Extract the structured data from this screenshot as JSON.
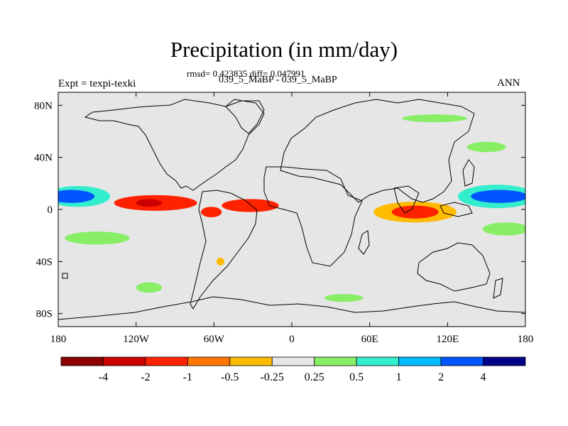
{
  "chart_data": {
    "type": "heatmap",
    "title": "Precipitation (in mm/day)",
    "stats": "rmsd= 0.423835 diff= 0.047991",
    "experiments": "039_5_MaBP - 039_5_MaBP",
    "expt_label": "Expt = texpi-texki",
    "period": "ANN",
    "xlim": [
      -180,
      180
    ],
    "ylim": [
      -90,
      90
    ],
    "x_ticks": [
      {
        "value": -180,
        "label": "180"
      },
      {
        "value": -120,
        "label": "120W"
      },
      {
        "value": -60,
        "label": "60W"
      },
      {
        "value": 0,
        "label": "0"
      },
      {
        "value": 60,
        "label": "60E"
      },
      {
        "value": 120,
        "label": "120E"
      },
      {
        "value": 180,
        "label": "180"
      }
    ],
    "y_ticks": [
      {
        "value": 80,
        "label": "80N"
      },
      {
        "value": 40,
        "label": "40N"
      },
      {
        "value": 0,
        "label": "0"
      },
      {
        "value": -40,
        "label": "40S"
      },
      {
        "value": -80,
        "label": "80S"
      }
    ],
    "colorbar": {
      "levels": [
        "-4",
        "-2",
        "-1",
        "-0.5",
        "-0.25",
        "0.25",
        "0.5",
        "1",
        "2",
        "4"
      ],
      "colors": [
        "#8b0000",
        "#cc0000",
        "#ff2200",
        "#ff7700",
        "#ffbb00",
        "#e6e6e6",
        "#88ee66",
        "#33eecc",
        "#00bbff",
        "#0055ff",
        "#000088"
      ]
    },
    "regions": [
      {
        "name": "tropical-pacific-east-dry",
        "lon": -105,
        "lat": 5,
        "rlon": 32,
        "rlat": 6,
        "level": -2
      },
      {
        "name": "tropical-pacific-east-core",
        "lon": -110,
        "lat": 5,
        "rlon": 10,
        "rlat": 3,
        "level": -4
      },
      {
        "name": "tropical-pacific-east-halo",
        "lon": -100,
        "lat": 8,
        "rlon": 45,
        "rlat": 10,
        "level": -0.25
      },
      {
        "name": "tropical-atlantic-dry",
        "lon": -32,
        "lat": 3,
        "rlon": 22,
        "rlat": 5,
        "level": -2
      },
      {
        "name": "tropical-atlantic-halo",
        "lon": -25,
        "lat": 8,
        "rlon": 30,
        "rlat": 9,
        "level": -0.25
      },
      {
        "name": "south-america-north",
        "lon": -62,
        "lat": -2,
        "rlon": 8,
        "rlat": 4,
        "level": -2
      },
      {
        "name": "africa-sahel",
        "lon": 22,
        "lat": 10,
        "rlon": 12,
        "rlat": 3,
        "level": -0.25
      },
      {
        "name": "indian-ocean-dry",
        "lon": 95,
        "lat": -2,
        "rlon": 18,
        "rlat": 5,
        "level": -2
      },
      {
        "name": "indian-ocean-halo",
        "lon": 95,
        "lat": -2,
        "rlon": 32,
        "rlat": 8,
        "level": -0.5
      },
      {
        "name": "west-pacific-wet",
        "lon": 160,
        "lat": 10,
        "rlon": 22,
        "rlat": 5,
        "level": 2
      },
      {
        "name": "west-pacific-wet-halo",
        "lon": 158,
        "lat": 10,
        "rlon": 30,
        "rlat": 9,
        "level": 0.5
      },
      {
        "name": "central-pacific-wet",
        "lon": -170,
        "lat": 10,
        "rlon": 18,
        "rlat": 5,
        "level": 2
      },
      {
        "name": "central-pacific-wet-halo",
        "lon": -165,
        "lat": 10,
        "rlon": 25,
        "rlat": 8,
        "level": 0.5
      },
      {
        "name": "north-pacific-dry",
        "lon": -165,
        "lat": 22,
        "rlon": 20,
        "rlat": 3,
        "level": -0.25
      },
      {
        "name": "south-pacific-dry",
        "lon": -165,
        "lat": -8,
        "rlon": 18,
        "rlat": 3,
        "level": -0.25
      },
      {
        "name": "north-pacific-east-dry",
        "lon": 165,
        "lat": 25,
        "rlon": 18,
        "rlat": 4,
        "level": -0.25
      },
      {
        "name": "south-pacific-wet",
        "lon": -150,
        "lat": -22,
        "rlon": 25,
        "rlat": 5,
        "level": 0.25
      },
      {
        "name": "south-pacific-west-wet",
        "lon": 165,
        "lat": -15,
        "rlon": 18,
        "rlat": 5,
        "level": 0.25
      },
      {
        "name": "southern-ocean-wet",
        "lon": -110,
        "lat": -60,
        "rlon": 10,
        "rlat": 4,
        "level": 0.25
      },
      {
        "name": "indian-ocean-south-wet",
        "lon": 40,
        "lat": -68,
        "rlon": 15,
        "rlat": 3,
        "level": 0.25
      },
      {
        "name": "arctic-wet",
        "lon": 110,
        "lat": 70,
        "rlon": 25,
        "rlat": 3,
        "level": 0.25
      },
      {
        "name": "north-pacific-high-wet",
        "lon": 150,
        "lat": 48,
        "rlon": 15,
        "rlat": 4,
        "level": 0.25
      },
      {
        "name": "south-atlantic-small",
        "lon": -55,
        "lat": -40,
        "rlon": 3,
        "rlat": 3,
        "level": -0.5
      }
    ]
  }
}
